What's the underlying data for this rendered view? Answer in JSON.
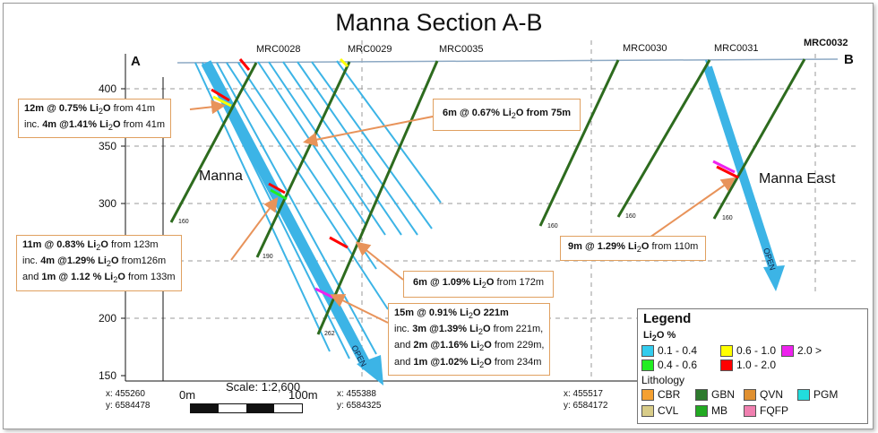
{
  "title": "Manna Section A-B",
  "section_ends": {
    "a": "A",
    "b": "B"
  },
  "holes": [
    "MRC0028",
    "MRC0029",
    "MRC0035",
    "MRC0030",
    "MRC0031",
    "MRC0032"
  ],
  "y_axis": {
    "ticks": [
      "400",
      "350",
      "300",
      "250",
      "200",
      "150"
    ]
  },
  "areas": {
    "manna": "Manna",
    "manna_east": "Manna East"
  },
  "open_label": "OPEN",
  "depth_labels": {
    "d160a": "160",
    "d190": "190",
    "d262": "262",
    "d160b": "160",
    "d160c": "160",
    "d160d": "160"
  },
  "notes": {
    "n1": {
      "l1a": "12m",
      "l1b": " @ 0.75% Li",
      "l1c": "2",
      "l1d": "O",
      "l1e": " from 41m",
      "l2a": "inc. ",
      "l2b": "4m @1.41% Li",
      "l2c": "2",
      "l2d": "O",
      "l2e": " from 41m"
    },
    "n2": {
      "a": "6m @ 0.67% Li",
      "b": "2",
      "c": "O from 75m"
    },
    "n3": {
      "l1a": "11m @ 0.83% Li",
      "l1b": "2",
      "l1c": "O",
      "l1d": " from 123m",
      "l2a": "inc. ",
      "l2b": "4m @1.29% Li",
      "l2c": "2",
      "l2d": "O",
      "l2e": " from126m",
      "l3a": "and ",
      "l3b": "1m @ 1.12 % Li",
      "l3c": "2",
      "l3d": "O",
      "l3e": " from 133m"
    },
    "n4": {
      "a": "6m @ 1.09% Li",
      "b": "2",
      "c": "O",
      "d": " from 172m"
    },
    "n5": {
      "l1a": "15m @ 0.91% Li",
      "l1b": "2",
      "l1c": "O 221m",
      "l2a": "inc. ",
      "l2b": "3m @1.39% Li",
      "l2c": "2",
      "l2d": "O",
      "l2e": " from 221m,",
      "l3a": "and ",
      "l3b": "2m @1.16% Li",
      "l3c": "2",
      "l3d": "O",
      "l3e": " from 229m,",
      "l4a": "and ",
      "l4b": "1m @1.02% Li",
      "l4c": "2",
      "l4d": "O",
      "l4e": " from 234m"
    },
    "n6": {
      "a": "9m @ 1.29% Li",
      "b": "2",
      "c": "O",
      "d": " from 110m"
    }
  },
  "coords": {
    "c1x": "x: 455260",
    "c1y": "y: 6584478",
    "c2x": "x: 455388",
    "c2y": "y: 6584325",
    "c3x": "x: 455517",
    "c3y": "y: 6584172"
  },
  "scale": {
    "label": "Scale: 1:2,600",
    "start": "0m",
    "end": "100m"
  },
  "legend": {
    "title": "Legend",
    "li_a": "Li",
    "li_b": "2",
    "li_c": "O %",
    "grades": [
      "0.1 - 0.4",
      "0.4 - 0.6",
      "0.6 - 1.0",
      "1.0 - 2.0",
      "2.0 >"
    ],
    "grade_colors": [
      "#33ccee",
      "#22ee22",
      "#ffff00",
      "#ff0000",
      "#ee22ee"
    ],
    "lithology_title": "Lithology",
    "lith": [
      "CBR",
      "CVL",
      "GBN",
      "MB",
      "QVN",
      "FQFP",
      "PGM"
    ],
    "lith_colors": [
      "#f5a030",
      "#d8cc88",
      "#2d7a2d",
      "#22aa22",
      "#e09030",
      "#f080b0",
      "#22dddd"
    ]
  },
  "colors": {
    "trace": "#3cb4e6",
    "hole": "#2d6b1e",
    "arrow": "#e8935a"
  }
}
